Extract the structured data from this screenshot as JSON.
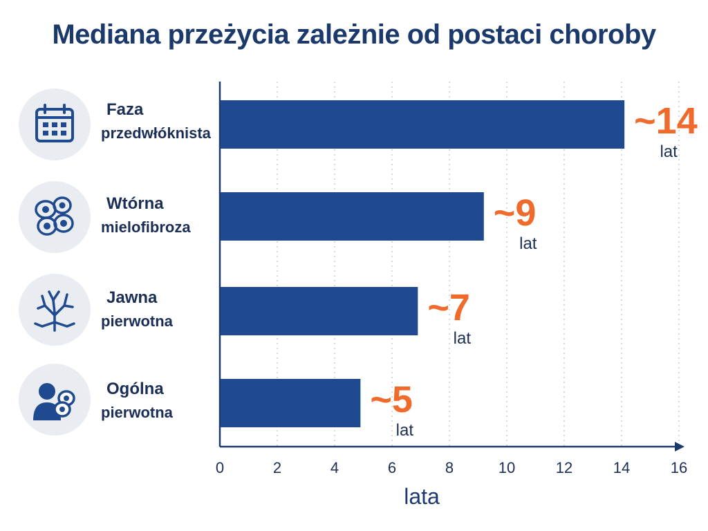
{
  "title": "Mediana przeżycia zależnie od postaci choroby",
  "categories": [
    {
      "line1": "Faza",
      "line2": "przedwłóknista",
      "icon": "calendar-icon",
      "value_label": "~14",
      "unit_label": "lat"
    },
    {
      "line1": "Wtórna",
      "line2": "mielofibroza",
      "icon": "cells-icon",
      "value_label": "~9",
      "unit_label": "lat"
    },
    {
      "line1": "Jawna",
      "line2": "pierwotna",
      "icon": "fibrosis-branch-icon",
      "value_label": "~7",
      "unit_label": "lat"
    },
    {
      "line1": "Ogólna",
      "line2": "pierwotna",
      "icon": "patient-cell-icon",
      "value_label": "~5",
      "unit_label": "lat"
    }
  ],
  "colors": {
    "bar": "#1f4a8f",
    "value": "#f06a2b",
    "text": "#1b2e55",
    "axis": "#1b3a6b",
    "grid": "#c9ced8"
  },
  "chart_data": {
    "type": "bar",
    "orientation": "horizontal",
    "categories": [
      "Faza przedwłóknista",
      "Wtórna mielofibroza",
      "Jawna pierwotna",
      "Ogólna pierwotna"
    ],
    "values": [
      14.1,
      9.2,
      6.9,
      4.9
    ],
    "title": "Mediana przeżycia zależnie od postaci choroby",
    "xlabel": "lata",
    "ylabel": "",
    "xlim": [
      0,
      16
    ],
    "xticks": [
      0,
      2,
      4,
      6,
      8,
      10,
      12,
      14,
      16
    ],
    "grid": "vertical dotted"
  }
}
